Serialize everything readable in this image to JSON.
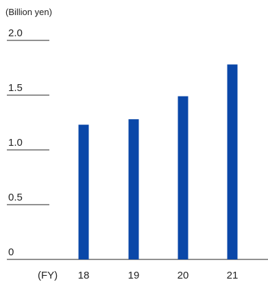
{
  "chart_data": {
    "type": "bar",
    "unit_label": "(Billion yen)",
    "x_axis_unit": "(FY)",
    "categories": [
      "18",
      "19",
      "20",
      "21"
    ],
    "values": [
      1.23,
      1.28,
      1.49,
      1.78
    ],
    "y_ticks": [
      "0",
      "0.5",
      "1.0",
      "1.5",
      "2.0"
    ],
    "ylim": [
      0,
      2.0
    ],
    "bar_color": "#0a47a8",
    "grid": "short tick lines at left only",
    "legend": "none"
  }
}
